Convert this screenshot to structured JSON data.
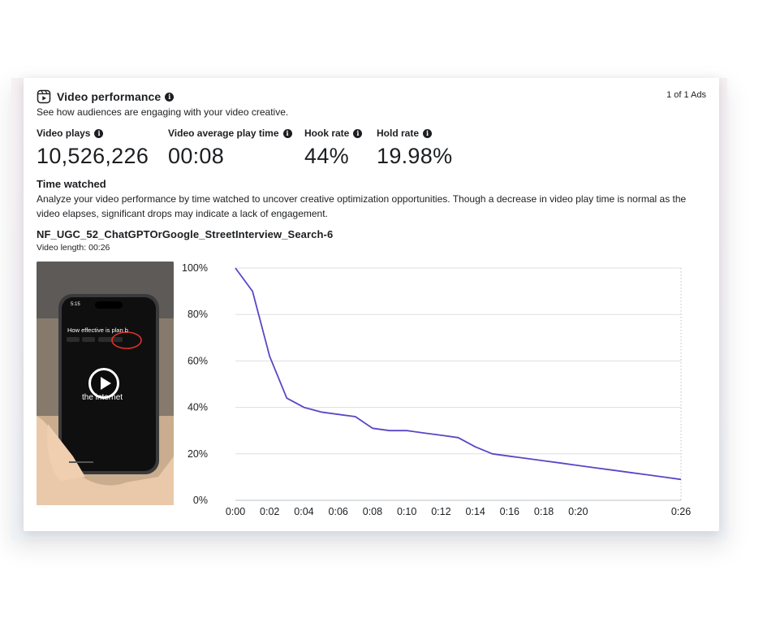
{
  "header": {
    "title": "Video performance",
    "subtitle": "See how audiences are engaging with your video creative.",
    "ads_count": "1 of 1 Ads"
  },
  "metrics": [
    {
      "label": "Video plays",
      "value": "10,526,226"
    },
    {
      "label": "Video average play time",
      "value": "00:08"
    },
    {
      "label": "Hook rate",
      "value": "44%"
    },
    {
      "label": "Hold rate",
      "value": "19.98%"
    }
  ],
  "time_watched": {
    "title": "Time watched",
    "description": "Analyze your video performance by time watched to uncover creative optimization opportunities. Though a decrease in video play time is normal as the video elapses, significant drops may indicate a lack of engagement."
  },
  "video": {
    "ad_name": "NF_UGC_52_ChatGPTOrGoogle_StreetInterview_Search-6",
    "length_label": "Video length:",
    "length_value": "00:26",
    "thumbnail_time": "5:15",
    "thumbnail_question": "How effective is plan b",
    "thumbnail_caption": "the internet"
  },
  "chart_data": {
    "type": "line",
    "x": [
      0,
      1,
      2,
      3,
      4,
      5,
      6,
      7,
      8,
      9,
      10,
      11,
      12,
      13,
      14,
      15,
      16,
      17,
      18,
      19,
      20,
      21,
      22,
      23,
      24,
      25,
      26
    ],
    "x_tick_labels": [
      "0:00",
      "0:02",
      "0:04",
      "0:06",
      "0:08",
      "0:10",
      "0:12",
      "0:14",
      "0:16",
      "0:18",
      "0:20",
      "0:26"
    ],
    "x_tick_positions": [
      0,
      2,
      4,
      6,
      8,
      10,
      12,
      14,
      16,
      18,
      20,
      26
    ],
    "series": [
      {
        "values": [
          100,
          90,
          62,
          44,
          40,
          38,
          37,
          36,
          31,
          30,
          30,
          29,
          28,
          27,
          23,
          20,
          19,
          18,
          17,
          16,
          15,
          14,
          13,
          12,
          11,
          10,
          9
        ]
      }
    ],
    "y_tick_labels": [
      "0%",
      "20%",
      "40%",
      "60%",
      "80%",
      "100%"
    ],
    "ylim": [
      0,
      100
    ],
    "xlim": [
      0,
      26
    ],
    "grid": true,
    "line_color": "#5b45c7"
  }
}
